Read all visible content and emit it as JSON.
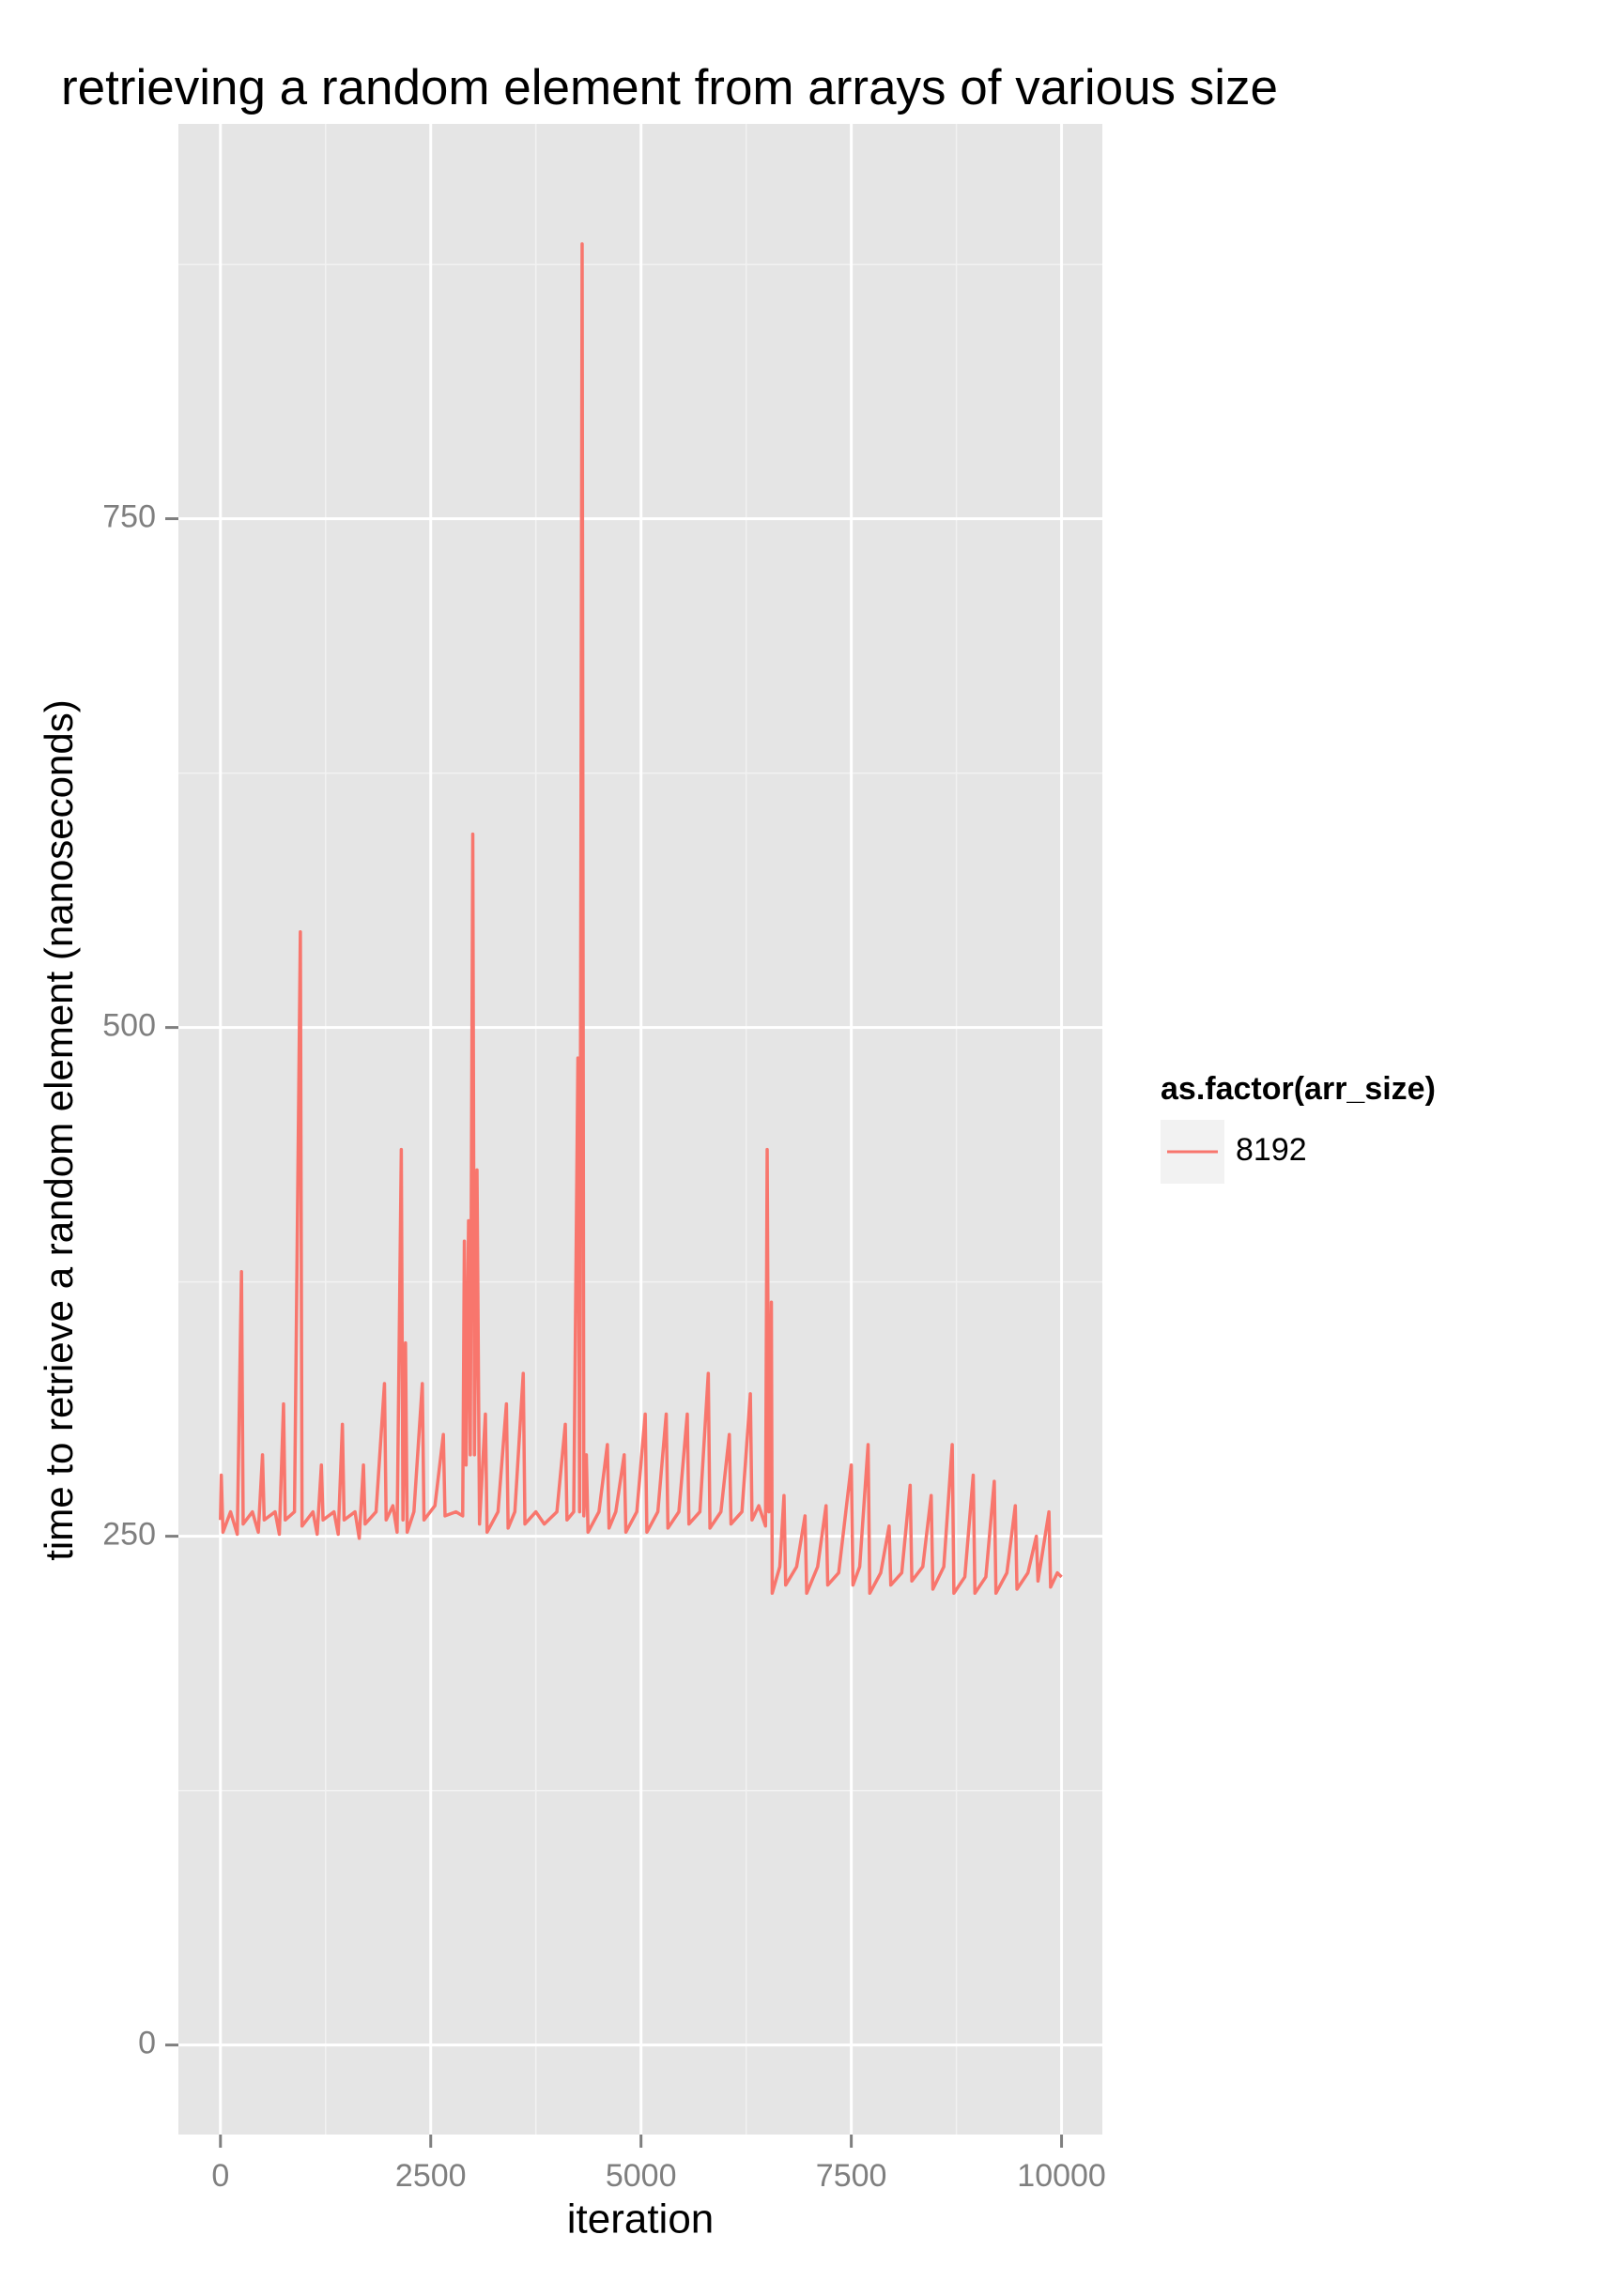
{
  "chart_data": {
    "type": "line",
    "title": "retrieving a random element from arrays of various size",
    "xlabel": "iteration",
    "ylabel": "time to retrieve a random element (nanoseconds)",
    "legend_title": "as.factor(arr_size)",
    "legend_position": "right",
    "grid": true,
    "xlim": [
      -500,
      10485
    ],
    "ylim": [
      -44,
      944
    ],
    "xticks": [
      0,
      2500,
      5000,
      7500,
      10000
    ],
    "yticks": [
      0,
      250,
      500,
      750
    ],
    "minor_xticks": [
      1250,
      3750,
      6250,
      8750
    ],
    "minor_yticks": [
      125,
      375,
      625,
      875
    ],
    "x": [
      0,
      10,
      30,
      120,
      200,
      250,
      270,
      380,
      450,
      500,
      520,
      650,
      700,
      750,
      770,
      880,
      950,
      970,
      1100,
      1150,
      1200,
      1220,
      1350,
      1400,
      1450,
      1470,
      1600,
      1650,
      1700,
      1720,
      1850,
      1950,
      1970,
      2050,
      2100,
      2150,
      2170,
      2200,
      2220,
      2300,
      2400,
      2420,
      2550,
      2650,
      2670,
      2800,
      2880,
      2900,
      2920,
      2950,
      2970,
      3000,
      3020,
      3050,
      3080,
      3150,
      3170,
      3300,
      3400,
      3420,
      3500,
      3600,
      3620,
      3750,
      3850,
      4000,
      4100,
      4120,
      4200,
      4250,
      4270,
      4300,
      4320,
      4350,
      4370,
      4500,
      4600,
      4620,
      4700,
      4800,
      4820,
      4950,
      5050,
      5070,
      5200,
      5300,
      5320,
      5450,
      5550,
      5570,
      5700,
      5800,
      5820,
      5950,
      6050,
      6070,
      6200,
      6300,
      6320,
      6400,
      6480,
      6500,
      6520,
      6550,
      6560,
      6650,
      6700,
      6720,
      6850,
      6950,
      6970,
      7100,
      7200,
      7220,
      7350,
      7500,
      7520,
      7600,
      7700,
      7720,
      7850,
      7950,
      7970,
      8100,
      8200,
      8220,
      8350,
      8450,
      8470,
      8600,
      8700,
      8720,
      8850,
      8950,
      8970,
      9100,
      9200,
      9220,
      9350,
      9450,
      9470,
      9600,
      9700,
      9720,
      9850,
      9870,
      9950,
      10000
    ],
    "series": [
      {
        "name": "8192",
        "color": "#f8766d",
        "values": [
          258,
          280,
          252,
          262,
          251,
          380,
          256,
          262,
          252,
          290,
          258,
          262,
          251,
          315,
          258,
          262,
          547,
          255,
          262,
          251,
          285,
          258,
          262,
          251,
          305,
          258,
          262,
          249,
          285,
          256,
          262,
          325,
          258,
          265,
          252,
          440,
          258,
          345,
          252,
          262,
          325,
          258,
          265,
          300,
          260,
          262,
          260,
          395,
          285,
          405,
          290,
          595,
          290,
          430,
          256,
          310,
          252,
          262,
          315,
          254,
          262,
          330,
          256,
          262,
          256,
          262,
          305,
          258,
          262,
          485,
          262,
          885,
          260,
          290,
          252,
          262,
          295,
          254,
          262,
          290,
          252,
          262,
          310,
          252,
          262,
          310,
          254,
          262,
          310,
          256,
          262,
          330,
          254,
          262,
          300,
          256,
          262,
          320,
          258,
          265,
          255,
          440,
          262,
          365,
          222,
          235,
          270,
          226,
          235,
          260,
          222,
          235,
          265,
          226,
          232,
          285,
          226,
          235,
          295,
          222,
          232,
          255,
          226,
          232,
          275,
          228,
          235,
          270,
          224,
          235,
          295,
          222,
          230,
          280,
          222,
          230,
          277,
          222,
          232,
          265,
          224,
          232,
          250,
          228,
          262,
          225,
          232,
          230
        ]
      }
    ]
  }
}
